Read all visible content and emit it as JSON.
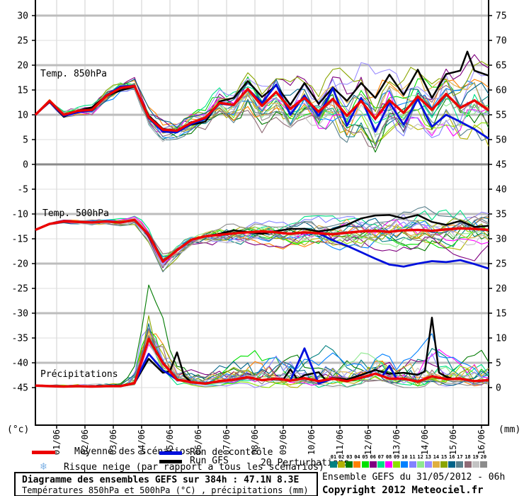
{
  "chart": {
    "left_axis": {
      "unit": "(°c)",
      "ticks": [
        30,
        25,
        20,
        15,
        10,
        5,
        0,
        -5,
        -10,
        -15,
        -20,
        -25,
        -30,
        -35,
        -40,
        -45
      ]
    },
    "right_axis": {
      "unit": "(mm)",
      "ticks": [
        75,
        70,
        65,
        60,
        55,
        50,
        45,
        40,
        35,
        30,
        25,
        20,
        15,
        10,
        5,
        0
      ]
    },
    "x_axis": {
      "dates": [
        "01/06",
        "02/06",
        "03/06",
        "04/06",
        "05/06",
        "06/06",
        "07/06",
        "08/06",
        "09/06",
        "10/06",
        "11/06",
        "12/06",
        "13/06",
        "14/06",
        "15/06",
        "16/06"
      ]
    },
    "panel_labels": {
      "t850": "Temp. 850hPa",
      "t500": "Temp. 500hPa",
      "precip": "Précipitations"
    }
  },
  "chart_data": {
    "type": "line",
    "title": "Diagramme des ensembles GEFS sur 384h : 47.1N 8.3E",
    "subtitle": "Températures 850hPa et 500hPa (°C) , précipitations (mm)",
    "run": "Ensemble GEFS du 31/05/2012 - 06h",
    "x_start": "31/05 06h",
    "x_hours_max": 384,
    "x_hours_step": 6,
    "left_scale_range": [
      -45,
      30
    ],
    "right_scale_range": [
      0,
      75
    ],
    "grid": true,
    "members_generated": true,
    "member_seed": 11,
    "member_count": 20,
    "panels": [
      {
        "id": "t850",
        "label": "Temp. 850hPa",
        "unit": "°C",
        "mean_step12": [
          10.0,
          12.8,
          10.0,
          10.8,
          11.0,
          13.8,
          15.4,
          15.8,
          9.5,
          7.0,
          6.8,
          8.4,
          9.4,
          12.4,
          12.0,
          15.2,
          11.8,
          14.6,
          11.2,
          13.4,
          10.6,
          13.2,
          9.8,
          12.8,
          9.2,
          12.9,
          10.4,
          13.7,
          11.0,
          14.2,
          11.4,
          12.9,
          10.9
        ],
        "control_delta": [
          [
            0,
            0
          ],
          [
            36,
            -0.3
          ],
          [
            72,
            0.3
          ],
          [
            108,
            -0.4
          ],
          [
            180,
            0
          ],
          [
            192,
            0.6
          ],
          [
            204,
            1.5
          ],
          [
            216,
            -1.2
          ],
          [
            228,
            0.5
          ],
          [
            240,
            -0.8
          ],
          [
            252,
            2.2
          ],
          [
            264,
            -2.0
          ],
          [
            276,
            0.6
          ],
          [
            288,
            -2.6
          ],
          [
            300,
            -0.4
          ],
          [
            312,
            -2.4
          ],
          [
            324,
            -0.5
          ],
          [
            336,
            -3.4
          ],
          [
            348,
            -4.2
          ],
          [
            360,
            -2.8
          ],
          [
            372,
            -5.8
          ],
          [
            384,
            -5.7
          ]
        ],
        "gfs_delta": [
          [
            0,
            0
          ],
          [
            24,
            -0.4
          ],
          [
            48,
            0.5
          ],
          [
            72,
            -0.5
          ],
          [
            96,
            0.3
          ],
          [
            120,
            0
          ],
          [
            144,
            -0.8
          ],
          [
            168,
            1.4
          ],
          [
            192,
            1.8
          ],
          [
            216,
            0.8
          ],
          [
            228,
            3.0
          ],
          [
            240,
            1.6
          ],
          [
            264,
            3.0
          ],
          [
            288,
            4.2
          ],
          [
            300,
            5.2
          ],
          [
            312,
            3.6
          ],
          [
            324,
            5.4
          ],
          [
            336,
            2.4
          ],
          [
            348,
            4.0
          ],
          [
            360,
            7.5
          ],
          [
            366,
            10.6
          ],
          [
            372,
            6.0
          ],
          [
            384,
            7.0
          ]
        ],
        "spread_keypoints": [
          [
            0,
            0.3
          ],
          [
            24,
            0.8
          ],
          [
            48,
            1.1
          ],
          [
            72,
            1.3
          ],
          [
            96,
            2.0
          ],
          [
            120,
            2.2
          ],
          [
            144,
            2.4
          ],
          [
            168,
            3.2
          ],
          [
            192,
            3.8
          ],
          [
            216,
            4.2
          ],
          [
            240,
            4.8
          ],
          [
            264,
            5.2
          ],
          [
            288,
            5.6
          ],
          [
            312,
            5.6
          ],
          [
            336,
            5.6
          ],
          [
            360,
            6.0
          ],
          [
            384,
            5.8
          ]
        ],
        "clamp": [
          1.2,
          24.5
        ]
      },
      {
        "id": "t500",
        "label": "Temp. 500hPa",
        "unit": "°C",
        "mean_step12": [
          -13.2,
          -12.0,
          -11.5,
          -11.6,
          -11.7,
          -11.5,
          -11.7,
          -11.2,
          -14.2,
          -19.6,
          -17.3,
          -15.2,
          -14.5,
          -14.2,
          -13.9,
          -13.7,
          -13.5,
          -13.7,
          -14.0,
          -13.7,
          -13.9,
          -14.1,
          -13.8,
          -13.5,
          -13.4,
          -13.6,
          -13.3,
          -13.2,
          -13.4,
          -13.1,
          -12.9,
          -13.0,
          -13.2
        ],
        "control_delta": [
          [
            0,
            0
          ],
          [
            240,
            0
          ],
          [
            252,
            -1.2
          ],
          [
            264,
            -2.6
          ],
          [
            276,
            -4.2
          ],
          [
            288,
            -5.6
          ],
          [
            300,
            -6.6
          ],
          [
            312,
            -7.3
          ],
          [
            324,
            -6.8
          ],
          [
            336,
            -6.1
          ],
          [
            348,
            -6.6
          ],
          [
            360,
            -6.4
          ],
          [
            372,
            -7.1
          ],
          [
            384,
            -7.8
          ]
        ],
        "gfs_delta": [
          [
            0,
            0
          ],
          [
            150,
            0
          ],
          [
            168,
            0.6
          ],
          [
            192,
            -0.5
          ],
          [
            216,
            1.0
          ],
          [
            240,
            0.4
          ],
          [
            264,
            1.6
          ],
          [
            276,
            2.6
          ],
          [
            288,
            3.1
          ],
          [
            300,
            3.4
          ],
          [
            312,
            2.4
          ],
          [
            324,
            3.0
          ],
          [
            336,
            1.8
          ],
          [
            348,
            0.9
          ],
          [
            360,
            1.5
          ],
          [
            372,
            0.4
          ],
          [
            384,
            0.8
          ]
        ],
        "spread_keypoints": [
          [
            0,
            0.2
          ],
          [
            48,
            0.5
          ],
          [
            84,
            0.8
          ],
          [
            96,
            1.6
          ],
          [
            108,
            2.0
          ],
          [
            120,
            1.6
          ],
          [
            144,
            1.6
          ],
          [
            192,
            2.2
          ],
          [
            240,
            2.8
          ],
          [
            288,
            3.2
          ],
          [
            336,
            3.4
          ],
          [
            384,
            3.8
          ]
        ],
        "clamp": [
          -23.5,
          -7.6
        ]
      },
      {
        "id": "precip",
        "label": "Précipitations",
        "unit": "mm",
        "mean_step12": [
          0.4,
          0.3,
          0.2,
          0.3,
          0.2,
          0.3,
          0.3,
          0.9,
          9.8,
          5.0,
          1.6,
          1.1,
          0.8,
          1.3,
          1.6,
          2.1,
          1.5,
          1.8,
          1.4,
          1.9,
          1.3,
          1.8,
          1.3,
          2.0,
          2.8,
          1.8,
          1.8,
          1.2,
          2.3,
          1.7,
          1.8,
          1.3,
          1.5
        ],
        "control_delta": [
          [
            0,
            0
          ],
          [
            84,
            0
          ],
          [
            96,
            -3.0
          ],
          [
            108,
            -1.5
          ],
          [
            120,
            0
          ],
          [
            216,
            0
          ],
          [
            228,
            6.0
          ],
          [
            240,
            -0.5
          ],
          [
            252,
            0
          ],
          [
            294,
            0
          ],
          [
            300,
            2.6
          ],
          [
            306,
            0
          ],
          [
            384,
            0
          ]
        ],
        "gfs_delta": [
          [
            0,
            0
          ],
          [
            84,
            0
          ],
          [
            96,
            -4.0
          ],
          [
            108,
            -2.0
          ],
          [
            114,
            0
          ],
          [
            120,
            5.5
          ],
          [
            126,
            1.0
          ],
          [
            132,
            0
          ],
          [
            210,
            0
          ],
          [
            216,
            2.3
          ],
          [
            222,
            0
          ],
          [
            240,
            1.8
          ],
          [
            246,
            0
          ],
          [
            330,
            1.5
          ],
          [
            336,
            11.8
          ],
          [
            342,
            1.0
          ],
          [
            354,
            0
          ],
          [
            384,
            0
          ]
        ],
        "spread_keypoints": [
          [
            0,
            0.15
          ],
          [
            72,
            0.4
          ],
          [
            84,
            2.2
          ],
          [
            96,
            4.5
          ],
          [
            108,
            3.8
          ],
          [
            120,
            1.6
          ],
          [
            144,
            1.0
          ],
          [
            168,
            1.8
          ],
          [
            192,
            2.4
          ],
          [
            216,
            2.6
          ],
          [
            240,
            2.6
          ],
          [
            264,
            2.6
          ],
          [
            288,
            3.0
          ],
          [
            312,
            2.6
          ],
          [
            336,
            3.0
          ],
          [
            360,
            2.6
          ],
          [
            384,
            2.2
          ]
        ],
        "clamp": [
          0,
          25.5
        ]
      }
    ]
  },
  "legend": {
    "mean": {
      "label": "Moyenne des scénarios",
      "color": "#ec0000"
    },
    "control": {
      "label": "Run de contrôle",
      "color": "#0010dd"
    },
    "gfs": {
      "label": "Run GFS",
      "color": "#000000"
    },
    "snow": {
      "label": "Risque neige (par rapport a tous les scénarios)",
      "icon_color": "#7fb2e5"
    },
    "perturbations": {
      "label": "20 Perturbations",
      "numbers": [
        "01",
        "02",
        "03",
        "04",
        "05",
        "06",
        "07",
        "08",
        "09",
        "10",
        "11",
        "12",
        "13",
        "14",
        "15",
        "16",
        "17",
        "18",
        "19",
        "20"
      ],
      "colors": [
        "#008080",
        "#b2b200",
        "#007a00",
        "#ff8000",
        "#00e100",
        "#800080",
        "#00e187",
        "#ff00ff",
        "#8ce100",
        "#0080ff",
        "#8282ff",
        "#8ee88e",
        "#9a8cff",
        "#dfaf3f",
        "#8aa500",
        "#006489",
        "#58808c",
        "#8f6b76",
        "#c3c3c3",
        "#8c8c8c"
      ]
    }
  },
  "footer": {
    "title": "Diagramme des ensembles GEFS sur 384h : 47.1N 8.3E",
    "subtitle": "Températures 850hPa et 500hPa (°C) , précipitations (mm)",
    "run_info": "Ensemble GEFS du 31/05/2012 - 06h",
    "copyright": "Copyright 2012 Meteociel.fr"
  },
  "style": {
    "grid_minor": "#dcdcdc",
    "grid_major": "#bdbdbd",
    "grid_zero": "#8a8a8a",
    "grid_vertical": "#cfcfcf",
    "axis": "#000000"
  }
}
